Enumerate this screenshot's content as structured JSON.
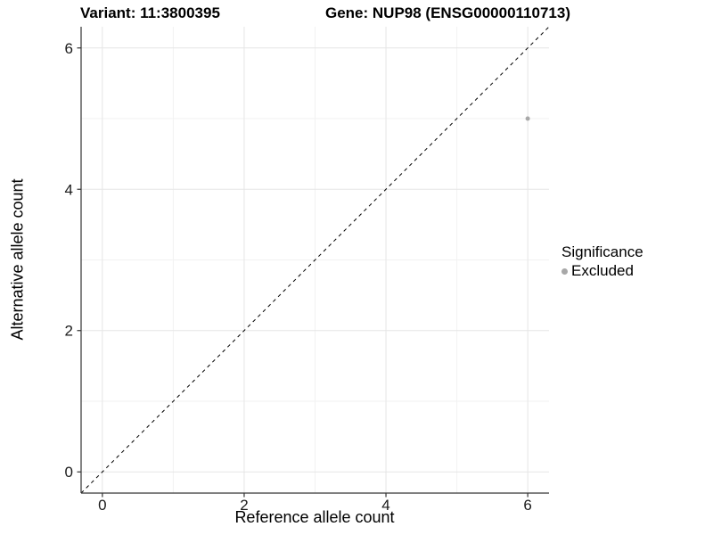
{
  "chart_data": {
    "type": "scatter",
    "titles": {
      "left": "Variant: 11:3800395",
      "right": "Gene: NUP98 (ENSG00000110713)"
    },
    "xlabel": "Reference allele count",
    "ylabel": "Alternative allele count",
    "xlim": [
      -0.3,
      6.3
    ],
    "ylim": [
      -0.3,
      6.3
    ],
    "x_ticks": [
      0,
      2,
      4,
      6
    ],
    "y_ticks": [
      0,
      2,
      4,
      6
    ],
    "x_minor": [
      1,
      3,
      5
    ],
    "y_minor": [
      1,
      3,
      5
    ],
    "grid": {
      "major_color": "#e5e5e5",
      "minor_color": "#f2f2f2"
    },
    "axis": {
      "line_color": "#333333",
      "tick_color": "#333333",
      "tick_label_color": "#1a1a1a"
    },
    "identity_line": {
      "equation": "y = x",
      "style": "dashed",
      "color": "#000000"
    },
    "series": [
      {
        "name": "Excluded",
        "color": "#a8a8a8",
        "points": [
          {
            "x": 6,
            "y": 5
          }
        ]
      }
    ],
    "legend": {
      "title": "Significance",
      "position": "right",
      "items": [
        {
          "label": "Excluded",
          "color": "#a8a8a8",
          "marker": "circle"
        }
      ]
    }
  }
}
